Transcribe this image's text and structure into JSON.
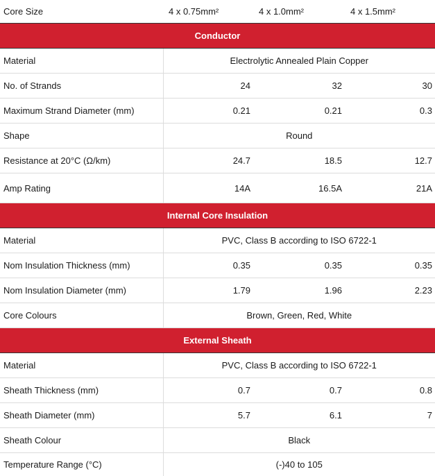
{
  "header": {
    "label": "Core Size",
    "cols": [
      "4 x 0.75mm²",
      "4 x 1.0mm²",
      "4 x 1.5mm²"
    ]
  },
  "conductor": {
    "title": "Conductor",
    "material": {
      "label": "Material",
      "value": "Electrolytic Annealed Plain Copper"
    },
    "strands": {
      "label": "No. of Strands",
      "values": [
        "24",
        "32",
        "30"
      ]
    },
    "strand_diameter": {
      "label": "Maximum Strand Diameter (mm)",
      "values": [
        "0.21",
        "0.21",
        "0.3"
      ]
    },
    "shape": {
      "label": "Shape",
      "value": "Round"
    },
    "resistance": {
      "label": "Resistance at 20°C (Ω/km)",
      "values": [
        "24.7",
        "18.5",
        "12.7"
      ]
    },
    "amp_rating": {
      "label": "Amp Rating",
      "values": [
        "14A",
        "16.5A",
        "21A"
      ]
    }
  },
  "insulation": {
    "title": "Internal Core Insulation",
    "material": {
      "label": "Material",
      "value": "PVC, Class B according to ISO 6722-1"
    },
    "thickness": {
      "label": "Nom Insulation Thickness (mm)",
      "values": [
        "0.35",
        "0.35",
        "0.35"
      ]
    },
    "diameter": {
      "label": "Nom Insulation Diameter (mm)",
      "values": [
        "1.79",
        "1.96",
        "2.23"
      ]
    },
    "colours": {
      "label": "Core Colours",
      "value": "Brown, Green, Red, White"
    }
  },
  "sheath": {
    "title": "External Sheath",
    "material": {
      "label": "Material",
      "value": "PVC, Class B according to ISO 6722-1"
    },
    "thickness": {
      "label": "Sheath Thickness (mm)",
      "values": [
        "0.7",
        "0.7",
        "0.8"
      ]
    },
    "diameter": {
      "label": "Sheath Diameter (mm)",
      "values": [
        "5.7",
        "6.1",
        "7"
      ]
    },
    "colour": {
      "label": "Sheath Colour",
      "value": "Black"
    },
    "temperature": {
      "label": "Temperature Range (°C)",
      "value": "(-)40 to 105"
    }
  }
}
